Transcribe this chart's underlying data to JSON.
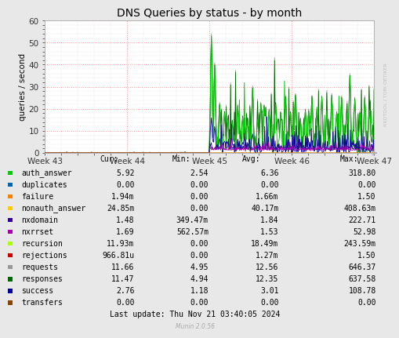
{
  "title": "DNS Queries by status - by month",
  "ylabel": "queries / second",
  "ylim": [
    0,
    60
  ],
  "yticks": [
    0,
    10,
    20,
    30,
    40,
    50,
    60
  ],
  "xtick_labels": [
    "Week 43",
    "Week 44",
    "Week 45",
    "Week 46",
    "Week 47"
  ],
  "bg_color": "#e8e8e8",
  "plot_bg_color": "#ffffff",
  "grid_color_major": "#ff9999",
  "grid_color_minor": "#cccccc",
  "watermark": "RRDTOOL / TOBI OETIKER",
  "munin_text": "Munin 2.0.56",
  "last_update": "Last update: Thu Nov 21 03:40:05 2024",
  "legend": [
    {
      "label": "auth_answer",
      "color": "#00cc00",
      "cur": "5.92",
      "min": "2.54",
      "avg": "6.36",
      "max": "318.80"
    },
    {
      "label": "duplicates",
      "color": "#0066b3",
      "cur": "0.00",
      "min": "0.00",
      "avg": "0.00",
      "max": "0.00"
    },
    {
      "label": "failure",
      "color": "#ff8000",
      "cur": "1.94m",
      "min": "0.00",
      "avg": "1.66m",
      "max": "1.50"
    },
    {
      "label": "nonauth_answer",
      "color": "#ffcc00",
      "cur": "24.85m",
      "min": "0.00",
      "avg": "40.17m",
      "max": "408.63m"
    },
    {
      "label": "nxdomain",
      "color": "#330099",
      "cur": "1.48",
      "min": "349.47m",
      "avg": "1.84",
      "max": "222.71"
    },
    {
      "label": "nxrrset",
      "color": "#aa00aa",
      "cur": "1.69",
      "min": "562.57m",
      "avg": "1.53",
      "max": "52.98"
    },
    {
      "label": "recursion",
      "color": "#aaff00",
      "cur": "11.93m",
      "min": "0.00",
      "avg": "18.49m",
      "max": "243.59m"
    },
    {
      "label": "rejections",
      "color": "#cc0000",
      "cur": "966.81u",
      "min": "0.00",
      "avg": "1.27m",
      "max": "1.50"
    },
    {
      "label": "requests",
      "color": "#999999",
      "cur": "11.66",
      "min": "4.95",
      "avg": "12.56",
      "max": "646.37"
    },
    {
      "label": "responses",
      "color": "#006600",
      "cur": "11.47",
      "min": "4.94",
      "avg": "12.35",
      "max": "637.58"
    },
    {
      "label": "success",
      "color": "#000099",
      "cur": "2.76",
      "min": "1.18",
      "avg": "3.01",
      "max": "108.78"
    },
    {
      "label": "transfers",
      "color": "#884400",
      "cur": "0.00",
      "min": "0.00",
      "avg": "0.00",
      "max": "0.00"
    }
  ],
  "title_fontsize": 10,
  "axis_fontsize": 7.5,
  "legend_fontsize": 7
}
